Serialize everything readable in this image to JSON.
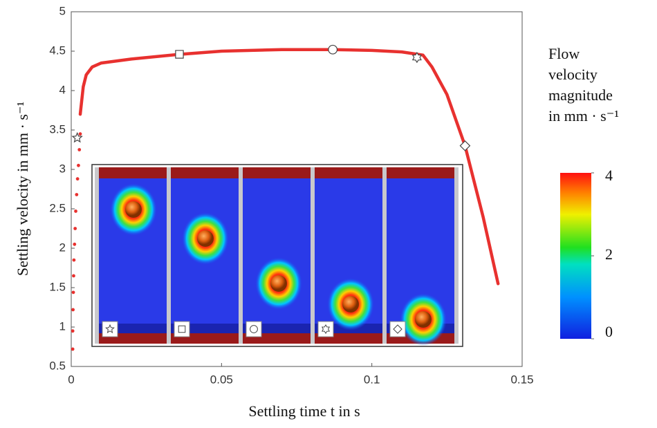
{
  "chart_data": {
    "type": "line",
    "ylabel": "Settling velocity in mm · s⁻¹",
    "xlabel": "Settling time t in  s",
    "xlim": [
      0,
      0.15
    ],
    "xticks": [
      0,
      0.05,
      0.1,
      0.15
    ],
    "ylim": [
      0.5,
      5
    ],
    "yticks": [
      0.5,
      1,
      1.5,
      2,
      2.5,
      3,
      3.5,
      4,
      4.5,
      5
    ],
    "series": [
      {
        "color": "#e8312f",
        "style": "dots",
        "x": [
          0.0005,
          0.0005,
          0.0006,
          0.0007,
          0.0008,
          0.0009,
          0.0011,
          0.0013,
          0.0015,
          0.0018,
          0.0021,
          0.0024,
          0.0027,
          0.003
        ],
        "values": [
          0.72,
          0.95,
          1.22,
          1.44,
          1.65,
          1.85,
          2.05,
          2.25,
          2.47,
          2.68,
          2.88,
          3.05,
          3.25,
          3.45
        ]
      },
      {
        "color": "#e8312f",
        "style": "line",
        "x": [
          0.003,
          0.004,
          0.005,
          0.007,
          0.01,
          0.02,
          0.036,
          0.05,
          0.07,
          0.087,
          0.1,
          0.11,
          0.117,
          0.12,
          0.125,
          0.131,
          0.137,
          0.142
        ],
        "values": [
          3.7,
          4.05,
          4.2,
          4.3,
          4.35,
          4.4,
          4.46,
          4.5,
          4.52,
          4.52,
          4.51,
          4.49,
          4.45,
          4.3,
          3.95,
          3.3,
          2.4,
          1.55
        ]
      }
    ],
    "markers": {
      "x": [
        0.002,
        0.036,
        0.087,
        0.115,
        0.131
      ],
      "values": [
        3.4,
        4.46,
        4.52,
        4.42,
        3.3
      ]
    },
    "colorbar": {
      "label_lines": [
        "Flow",
        "velocity",
        "magnitude",
        "in mm · s⁻¹"
      ],
      "lim": [
        0,
        4
      ],
      "ticks": [
        0,
        2,
        4
      ]
    }
  }
}
